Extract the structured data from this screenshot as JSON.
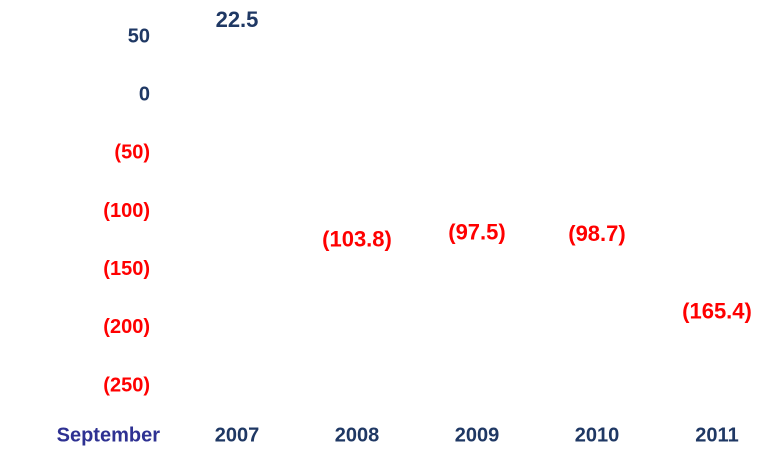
{
  "chart_data": {
    "type": "bar",
    "x_label": "September",
    "categories": [
      "2007",
      "2008",
      "2009",
      "2010",
      "2011"
    ],
    "values": [
      22.5,
      -103.8,
      -97.5,
      -98.7,
      -165.4
    ],
    "value_labels": [
      "22.5",
      "(103.8)",
      "(97.5)",
      "(98.7)",
      "(165.4)"
    ],
    "ylim": [
      -250,
      50
    ],
    "yticks": [
      50,
      0,
      {
        "value": -50,
        "label": "(50)"
      },
      {
        "value": -100,
        "label": "(100)"
      },
      {
        "value": -150,
        "label": "(150)"
      },
      {
        "value": -200,
        "label": "(200)"
      },
      {
        "value": -250,
        "label": "(250)"
      }
    ],
    "positive_color": "#1f3864",
    "negative_color": "#ff0000",
    "x_label_color": "#2e3192"
  }
}
